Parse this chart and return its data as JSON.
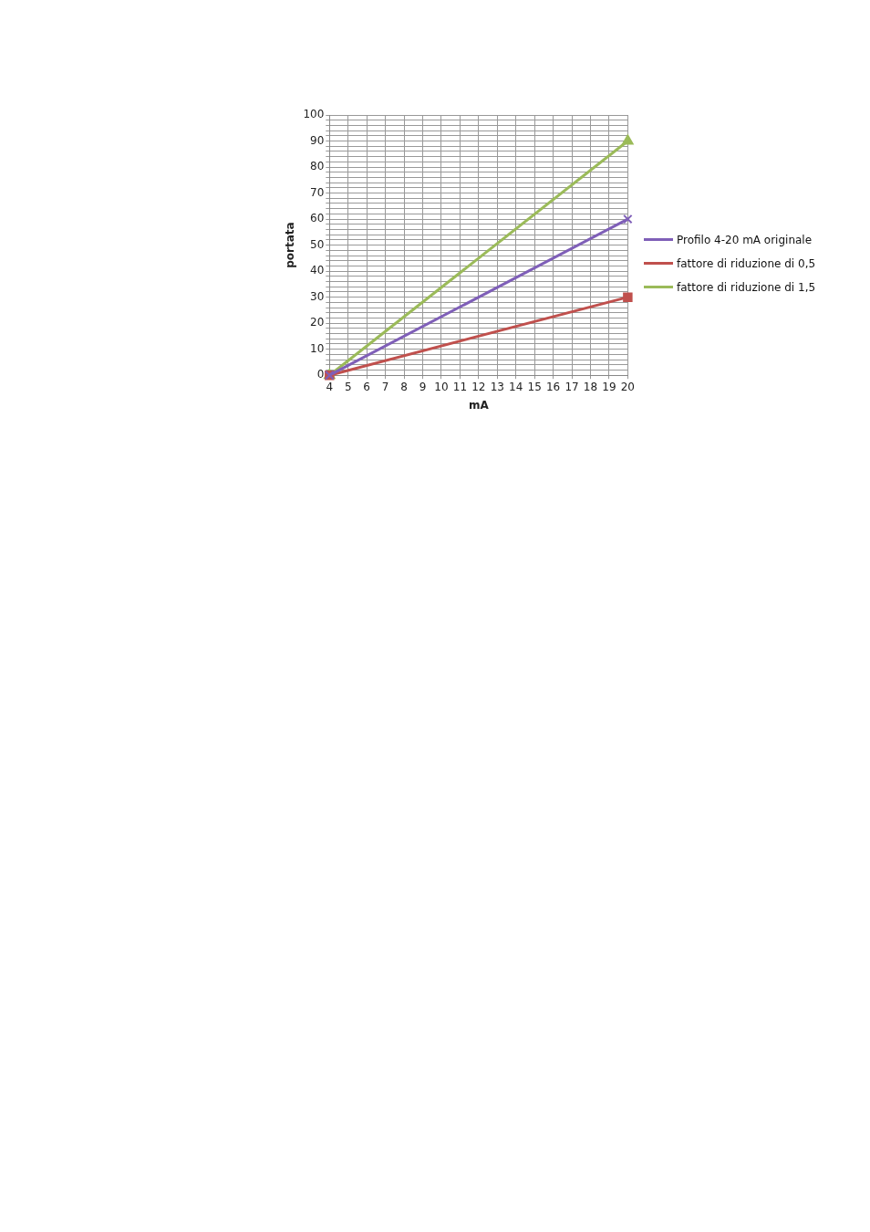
{
  "chart_data": {
    "type": "line",
    "xlabel": "mA",
    "ylabel": "portata",
    "xlim": [
      4,
      20
    ],
    "xticks": [
      4,
      5,
      6,
      7,
      8,
      9,
      10,
      11,
      12,
      13,
      14,
      15,
      16,
      17,
      18,
      19,
      20
    ],
    "ylim": [
      0,
      100
    ],
    "yticks": [
      0,
      {
        "value": 2,
        "label": null
      },
      {
        "value": 4,
        "label": null
      },
      {
        "value": 6,
        "label": null
      },
      {
        "value": 8,
        "label": null
      },
      10,
      {
        "value": 12,
        "label": null
      },
      {
        "value": 14,
        "label": null
      },
      {
        "value": 16,
        "label": null
      },
      {
        "value": 18,
        "label": null
      },
      20,
      {
        "value": 22,
        "label": null
      },
      {
        "value": 24,
        "label": null
      },
      {
        "value": 26,
        "label": null
      },
      {
        "value": 28,
        "label": null
      },
      30,
      {
        "value": 32,
        "label": null
      },
      {
        "value": 34,
        "label": null
      },
      {
        "value": 36,
        "label": null
      },
      {
        "value": 38,
        "label": null
      },
      40,
      {
        "value": 42,
        "label": null
      },
      {
        "value": 44,
        "label": null
      },
      {
        "value": 46,
        "label": null
      },
      {
        "value": 48,
        "label": null
      },
      50,
      {
        "value": 52,
        "label": null
      },
      {
        "value": 54,
        "label": null
      },
      {
        "value": 56,
        "label": null
      },
      {
        "value": 58,
        "label": null
      },
      60,
      {
        "value": 62,
        "label": null
      },
      {
        "value": 64,
        "label": null
      },
      {
        "value": 66,
        "label": null
      },
      {
        "value": 68,
        "label": null
      },
      70,
      {
        "value": 72,
        "label": null
      },
      {
        "value": 74,
        "label": null
      },
      {
        "value": 76,
        "label": null
      },
      {
        "value": 78,
        "label": null
      },
      80,
      {
        "value": 82,
        "label": null
      },
      {
        "value": 84,
        "label": null
      },
      {
        "value": 86,
        "label": null
      },
      {
        "value": 88,
        "label": null
      },
      90,
      {
        "value": 92,
        "label": null
      },
      {
        "value": 94,
        "label": null
      },
      {
        "value": 96,
        "label": null
      },
      {
        "value": 98,
        "label": null
      },
      100
    ],
    "grid": true,
    "legend": "right",
    "line_style": "solid",
    "x": [
      4,
      20
    ],
    "series": [
      {
        "name": "Profilo 4-20 mA originale",
        "color": "#7f5fb8",
        "values": [
          0,
          60
        ],
        "marker": "cross"
      },
      {
        "name": "fattore di riduzione di 0,5",
        "color": "#c0504d",
        "values": [
          0,
          30
        ],
        "marker": "square"
      },
      {
        "name": "fattore di riduzione di 1,5",
        "color": "#9bbb59",
        "values": [
          0,
          90
        ],
        "marker": "triangle"
      }
    ]
  }
}
